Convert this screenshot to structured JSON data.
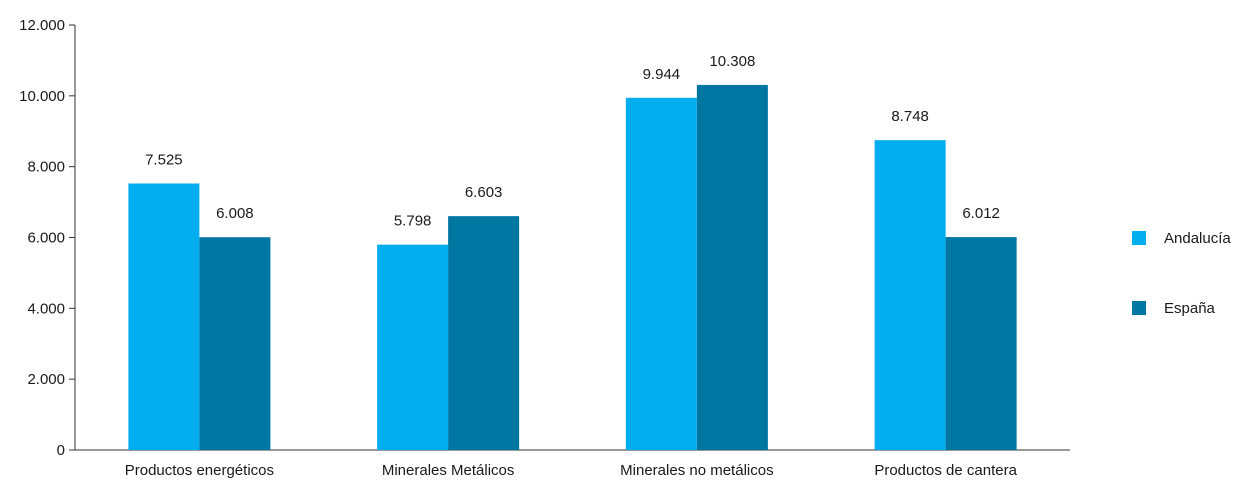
{
  "chart_data": {
    "type": "bar",
    "categories": [
      "Productos energéticos",
      "Minerales Metálicos",
      "Minerales no metálicos",
      "Productos de cantera"
    ],
    "series": [
      {
        "name": "Andalucía",
        "color": "#00AEEF",
        "values": [
          7525,
          5798,
          9944,
          8748
        ],
        "labels": [
          "7.525",
          "5.798",
          "9.944",
          "8.748"
        ]
      },
      {
        "name": "España",
        "color": "#0077A3",
        "values": [
          6008,
          6603,
          10308,
          6012
        ],
        "labels": [
          "6.008",
          "6.603",
          "10.308",
          "6.012"
        ]
      }
    ],
    "yticks": [
      0,
      2000,
      4000,
      6000,
      8000,
      10000,
      12000
    ],
    "ytick_labels": [
      "0",
      "2.000",
      "4.000",
      "6.000",
      "8.000",
      "10.000",
      "12.000"
    ],
    "ylim": [
      0,
      12000
    ],
    "legend_position": "right",
    "grid": false
  }
}
